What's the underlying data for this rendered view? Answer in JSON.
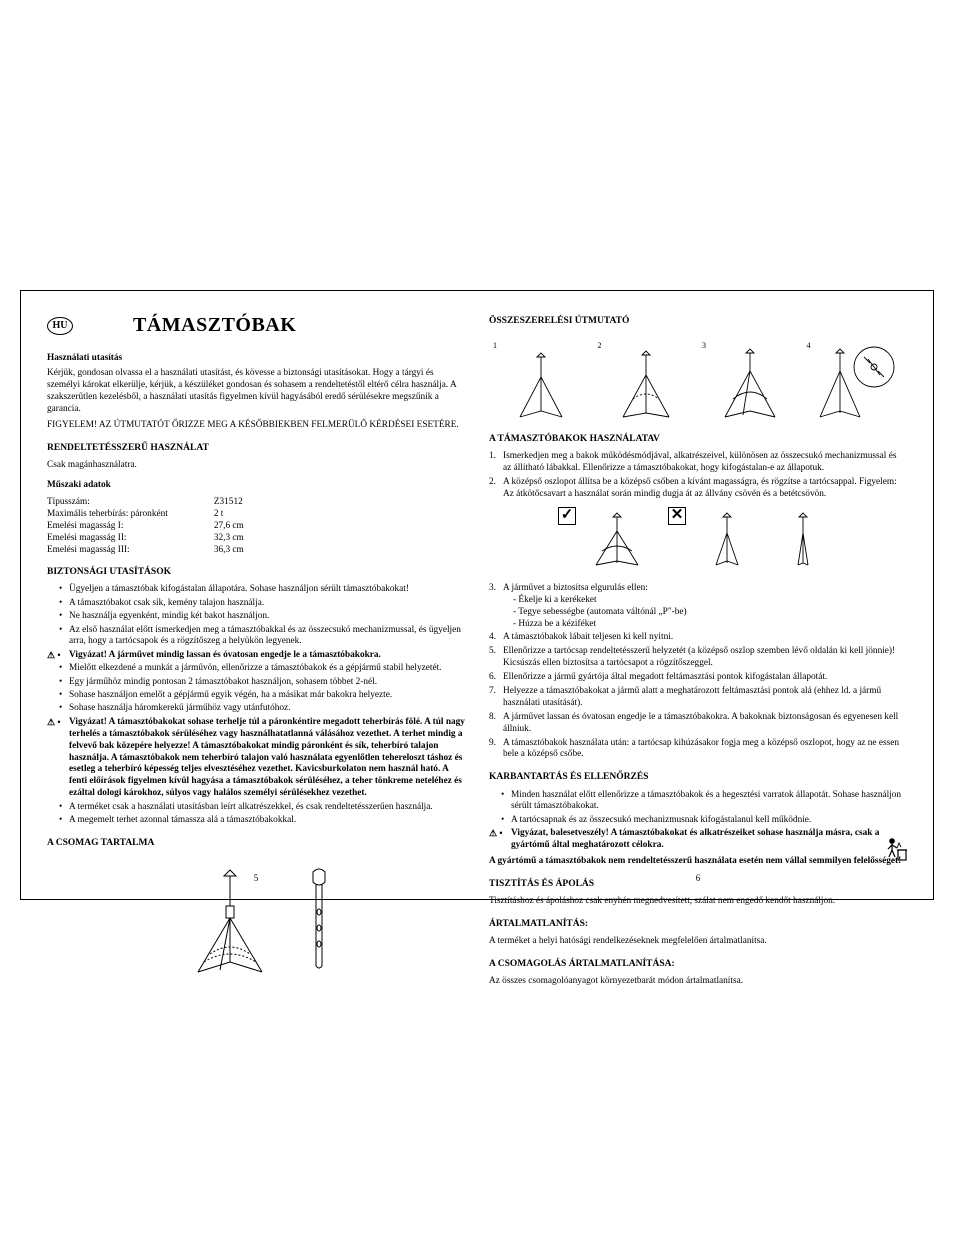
{
  "lang_code": "HU",
  "title": "TÁMASZTÓBAK",
  "left": {
    "h_usage": "Használati utasítás",
    "intro1": "Kérjük, gondosan olvassa el a használati utasítást, és kövesse a biztonsági utasításokat. Hogy a tárgyi és személyi károkat elkerülje, kérjük, a készüléket gondosan és sohasem a rendeltetéstől eltérő célra használja. A szakszerűtlen kezelésből, a használati utasítás figyelmen kívül hagyásából eredő sérülésekre megszűnik a garancia.",
    "intro2": "FIGYELEM! AZ ÚTMUTATÓT ŐRIZZE MEG A KÉSŐBBIEKBEN FELMERÜLŐ KÉRDÉSEI ESETÉRE.",
    "h_intended": "RENDELTETÉSSZERŰ HASZNÁLAT",
    "intended_body": "Csak magánhasználatra.",
    "h_specs": "Műszaki adatok",
    "specs": [
      [
        "Típusszám:",
        "Z31512"
      ],
      [
        "Maximális teherbírás: páronként",
        "2 t"
      ],
      [
        "Emelési magasság I:",
        "27,6 cm"
      ],
      [
        "Emelési magasság II:",
        "32,3 cm"
      ],
      [
        "Emelési magasság III:",
        "36,3 cm"
      ]
    ],
    "h_safety": "BIZTONSÁGI UTASÍTÁSOK",
    "safety": [
      {
        "warn": false,
        "bold": false,
        "text": "Ügyeljen a támasztóbak kifogástalan állapotára. Sohase használjon sérült támasztóbakokat!"
      },
      {
        "warn": false,
        "bold": false,
        "text": "A támasztóbakot csak sík, kemény talajon használja."
      },
      {
        "warn": false,
        "bold": false,
        "text": "Ne használja egyenként, mindig két bakot használjon."
      },
      {
        "warn": false,
        "bold": false,
        "text": "Az első használat előtt ismerkedjen meg a támasztóbakkal és az összecsukó mechanizmussal, és ügyeljen arra, hogy a tartócsapok és a rögzítőszeg a helyükön legyenek."
      },
      {
        "warn": true,
        "bold": true,
        "text": "Vigyázat! A járművet mindig lassan és óvatosan engedje le a támasztóbakokra."
      },
      {
        "warn": false,
        "bold": false,
        "text": "Mielőtt elkezdené a munkát a járművön, ellenőrizze a támasztóbakok és a gépjármű stabil helyzetét."
      },
      {
        "warn": false,
        "bold": false,
        "text": "Egy járműhöz mindig pontosan 2 támasztóbakot használjon, sohasem többet 2-nél."
      },
      {
        "warn": false,
        "bold": false,
        "text": "Sohase használjon emelőt a gépjármű egyik végén, ha a másikat már bakokra helyezte."
      },
      {
        "warn": false,
        "bold": false,
        "text": "Sohase használja háromkerekű járműhöz vagy utánfutóhoz."
      },
      {
        "warn": true,
        "bold": true,
        "text": "Vigyázat! A támasztóbakokat sohase terhelje túl a páronkéntire megadott teherbírás fölé. A túl nagy terhelés a támasztóbakok sérüléséhez vagy használhatatlanná válásához vezethet. A terhet mindig a felvevő bak közepére helyezze! A támasztóbakokat mindig páronként és sík, teherbíró talajon használja. A támasztóbakok nem teherbíró talajon való használata egyenlőtlen tehereloszt táshoz és esetleg a teherbíró képesség teljes elvesztéséhez vezethet. Kavicsburkolaton nem használ ható. A fenti előírások figyelmen kívül hagyása a támasztóbakok sérüléséhez, a teher tönkreme neteléhez és ezáltal dologi károkhoz, súlyos vagy halálos személyi sérülésekhez vezethet."
      },
      {
        "warn": false,
        "bold": false,
        "text": "A terméket csak a használati utasításban leírt alkatrészekkel, és csak rendeltetésszerűen használja."
      },
      {
        "warn": false,
        "bold": false,
        "text": "A megemelt terhet azonnal támassza alá a támasztóbakokkal."
      }
    ],
    "h_package": "A CSOMAG TARTALMA",
    "page_num": "5"
  },
  "right": {
    "h_assembly": "ÖSSZESZERELÉSI ÚTMUTATÓ",
    "assembly_steps": [
      "1",
      "2",
      "3",
      "4"
    ],
    "h_use": "A TÁMASZTÓBAKOK HASZNÁLATAV",
    "use_steps": [
      {
        "n": "1.",
        "text": "Ismerkedjen meg a bakok működésmódjával, alkatrészeivel, különösen az összecsukó mechanizmussal és az állítható lábakkal. Ellenőrizze a támasztóbakokat, hogy kifogástalan-e az állapotuk."
      },
      {
        "n": "2.",
        "text": "A középső oszlopot állítsa be a középső csőben a kívánt magasságra, és rögzítse a tartócsappal. Figyelem: Az átkötőcsavart a használat során mindig dugja át az állvány csövén és a betétcsövön."
      }
    ],
    "use_steps_post": [
      {
        "n": "3.",
        "text": "A járművet a biztosítsa elgurulás ellen:",
        "subs": [
          "- Ékelje ki a kerékeket",
          "- Tegye sebességbe (automata váltónál „P\"-be)",
          "- Húzza be a kéziféket"
        ]
      },
      {
        "n": "4.",
        "text": "A támasztóbakok lábait teljesen ki kell nyitni."
      },
      {
        "n": "5.",
        "text": "Ellenőrizze a tartócsap rendeltetésszerű helyzetét (a középső oszlop szemben lévő oldalán ki kell jönnie)! Kicsúszás ellen biztosítsa a tartócsapot a rögzítőszeggel."
      },
      {
        "n": "6.",
        "text": "Ellenőrizze a jármű gyártója által megadott feltámasztási pontok kifogástalan állapotát."
      },
      {
        "n": "7.",
        "text": "Helyezze a támasztóbakokat a jármű alatt a meghatározott feltámasztási pontok alá (ehhez ld. a jármű használati utasítását)."
      },
      {
        "n": "8.",
        "text": "A járművet lassan és óvatosan engedje le a támasztóbakokra. A bakoknak biztonságosan és egyenesen kell állniuk."
      },
      {
        "n": "9.",
        "text": "A támasztóbakok használata után: a tartócsap kihúzásakor fogja meg a középső oszlopot, hogy az ne essen bele a középső csőbe."
      }
    ],
    "h_maint": "KARBANTARTÁS ÉS ELLENŐRZÉS",
    "maint": [
      {
        "warn": false,
        "bold": false,
        "text": "Minden használat előtt ellenőrizze a támasztóbakok és a hegesztési varratok állapotát. Sohase használjon sérült támasztóbakokat."
      },
      {
        "warn": false,
        "bold": false,
        "text": "A tartócsapnak és az összecsukó mechanizmusnak kifogástalanul kell működnie."
      },
      {
        "warn": true,
        "bold": true,
        "text": "Vigyázat, balesetveszély! A támasztóbakokat és alkatrészeiket sohase használja másra, csak a gyártómű által meghatározott célokra."
      }
    ],
    "maint_after": "A gyártómű a támasztóbakok nem rendeltetésszerű használata esetén nem vállal semmilyen felelősséget!",
    "h_clean": "TISZTÍTÁS ÉS ÁPOLÁS",
    "clean_body": "Tisztításhoz és ápoláshoz csak enyhén megnedvesített, szálat nem engedő kendőt használjon.",
    "h_disposal": "ÁRTALMATLANÍTÁS:",
    "disposal_body": "A terméket a helyi hatósági rendelkezéseknek megfelelően ártalmatlanítsa.",
    "h_pack_disposal": "A CSOMAGOLÁS ÁRTALMATLANÍTÁSA:",
    "pack_disposal_body": "Az összes csomagolóanyagot környezetbarát módon ártalmatlanítsa.",
    "page_num": "6",
    "check_mark": "✓",
    "cross_mark": "✕"
  }
}
